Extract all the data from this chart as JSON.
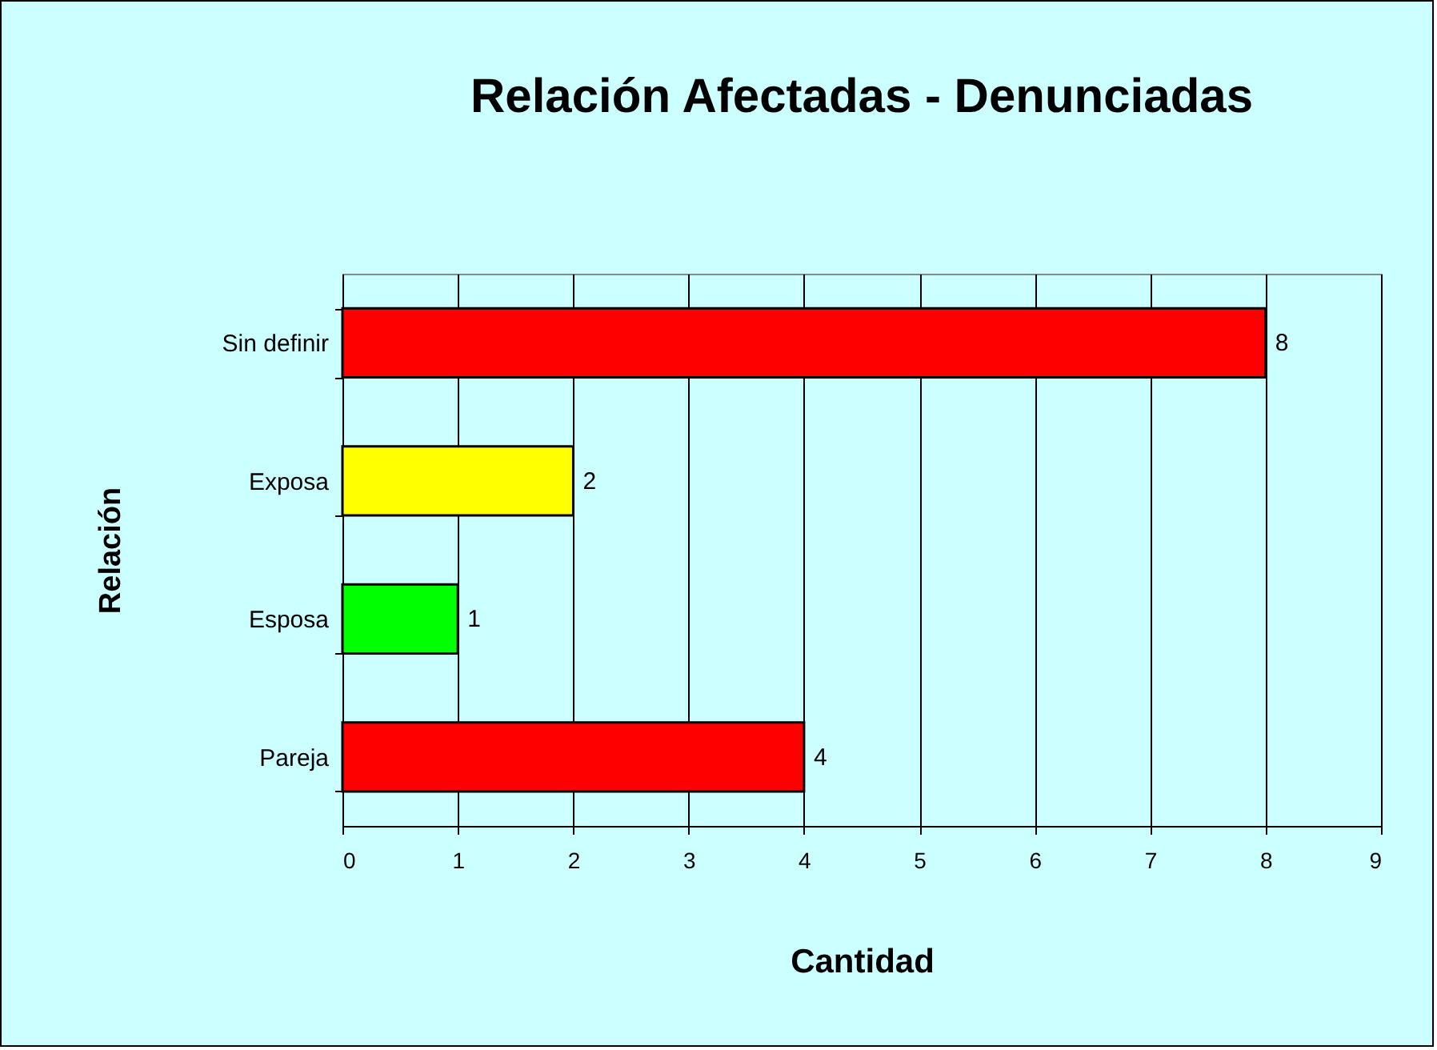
{
  "chart_data": {
    "type": "bar",
    "orientation": "horizontal",
    "title": "Relación Afectadas - Denunciadas",
    "xlabel": "Cantidad",
    "ylabel": "Relación",
    "categories": [
      "Sin definir",
      "Exposa",
      "Esposa",
      "Pareja"
    ],
    "values": [
      8,
      2,
      1,
      4
    ],
    "colors": [
      "#ff0000",
      "#ffff00",
      "#00ff00",
      "#ff0000"
    ],
    "xlim": [
      0,
      9
    ],
    "xticks": [
      0,
      1,
      2,
      3,
      4,
      5,
      6,
      7,
      8,
      9
    ],
    "grid": "x",
    "data_labels": true
  }
}
